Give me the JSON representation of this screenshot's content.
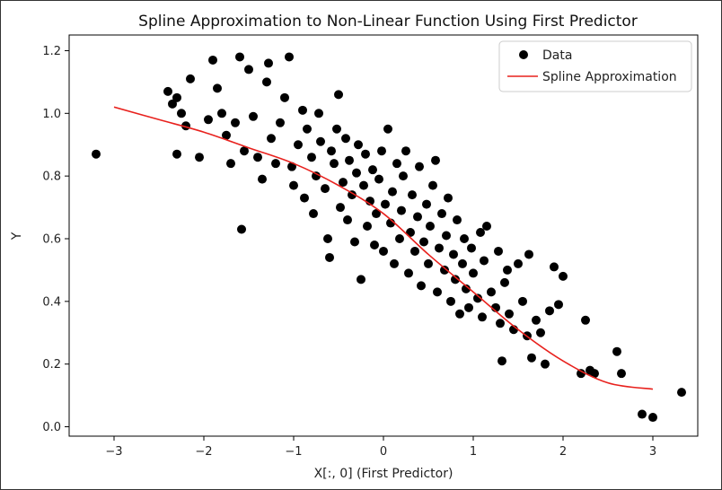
{
  "chart_data": {
    "type": "scatter",
    "title": "Spline Approximation to Non-Linear Function Using First Predictor",
    "xlabel": "X[:, 0] (First Predictor)",
    "ylabel": "Y",
    "xlim": [
      -3.5,
      3.5
    ],
    "ylim": [
      -0.03,
      1.25
    ],
    "xticks": [
      -3,
      -2,
      -1,
      0,
      1,
      2,
      3
    ],
    "xtick_labels": [
      "−3",
      "−2",
      "−1",
      "0",
      "1",
      "2",
      "3"
    ],
    "yticks": [
      0.0,
      0.2,
      0.4,
      0.6,
      0.8,
      1.0,
      1.2
    ],
    "ytick_labels": [
      "0.0",
      "0.2",
      "0.4",
      "0.6",
      "0.8",
      "1.0",
      "1.2"
    ],
    "grid": false,
    "legend_position": "top-right",
    "series": [
      {
        "name": "Data",
        "kind": "scatter",
        "color": "#000000",
        "points": [
          [
            -3.2,
            0.87
          ],
          [
            -2.4,
            1.07
          ],
          [
            -2.35,
            1.03
          ],
          [
            -2.3,
            1.05
          ],
          [
            -2.25,
            1.0
          ],
          [
            -2.2,
            0.96
          ],
          [
            -2.15,
            1.11
          ],
          [
            -2.3,
            0.87
          ],
          [
            -2.05,
            0.86
          ],
          [
            -1.95,
            0.98
          ],
          [
            -1.9,
            1.17
          ],
          [
            -1.85,
            1.08
          ],
          [
            -1.8,
            1.0
          ],
          [
            -1.75,
            0.93
          ],
          [
            -1.7,
            0.84
          ],
          [
            -1.65,
            0.97
          ],
          [
            -1.6,
            1.18
          ],
          [
            -1.58,
            0.63
          ],
          [
            -1.55,
            0.88
          ],
          [
            -1.5,
            1.14
          ],
          [
            -1.45,
            0.99
          ],
          [
            -1.4,
            0.86
          ],
          [
            -1.35,
            0.79
          ],
          [
            -1.3,
            1.1
          ],
          [
            -1.28,
            1.16
          ],
          [
            -1.25,
            0.92
          ],
          [
            -1.2,
            0.84
          ],
          [
            -1.15,
            0.97
          ],
          [
            -1.1,
            1.05
          ],
          [
            -1.05,
            1.18
          ],
          [
            -1.02,
            0.83
          ],
          [
            -1.0,
            0.77
          ],
          [
            -0.95,
            0.9
          ],
          [
            -0.9,
            1.01
          ],
          [
            -0.88,
            0.73
          ],
          [
            -0.85,
            0.95
          ],
          [
            -0.8,
            0.86
          ],
          [
            -0.78,
            0.68
          ],
          [
            -0.75,
            0.8
          ],
          [
            -0.72,
            1.0
          ],
          [
            -0.7,
            0.91
          ],
          [
            -0.65,
            0.76
          ],
          [
            -0.62,
            0.6
          ],
          [
            -0.6,
            0.54
          ],
          [
            -0.58,
            0.88
          ],
          [
            -0.55,
            0.84
          ],
          [
            -0.52,
            0.95
          ],
          [
            -0.5,
            1.06
          ],
          [
            -0.48,
            0.7
          ],
          [
            -0.45,
            0.78
          ],
          [
            -0.42,
            0.92
          ],
          [
            -0.4,
            0.66
          ],
          [
            -0.38,
            0.85
          ],
          [
            -0.35,
            0.74
          ],
          [
            -0.32,
            0.59
          ],
          [
            -0.3,
            0.81
          ],
          [
            -0.28,
            0.9
          ],
          [
            -0.25,
            0.47
          ],
          [
            -0.22,
            0.77
          ],
          [
            -0.2,
            0.87
          ],
          [
            -0.18,
            0.64
          ],
          [
            -0.15,
            0.72
          ],
          [
            -0.12,
            0.82
          ],
          [
            -0.1,
            0.58
          ],
          [
            -0.08,
            0.68
          ],
          [
            -0.05,
            0.79
          ],
          [
            -0.02,
            0.88
          ],
          [
            0.0,
            0.56
          ],
          [
            0.02,
            0.71
          ],
          [
            0.05,
            0.95
          ],
          [
            0.08,
            0.65
          ],
          [
            0.1,
            0.75
          ],
          [
            0.12,
            0.52
          ],
          [
            0.15,
            0.84
          ],
          [
            0.18,
            0.6
          ],
          [
            0.2,
            0.69
          ],
          [
            0.22,
            0.8
          ],
          [
            0.25,
            0.88
          ],
          [
            0.28,
            0.49
          ],
          [
            0.3,
            0.62
          ],
          [
            0.32,
            0.74
          ],
          [
            0.35,
            0.56
          ],
          [
            0.38,
            0.67
          ],
          [
            0.4,
            0.83
          ],
          [
            0.42,
            0.45
          ],
          [
            0.45,
            0.59
          ],
          [
            0.48,
            0.71
          ],
          [
            0.5,
            0.52
          ],
          [
            0.52,
            0.64
          ],
          [
            0.55,
            0.77
          ],
          [
            0.58,
            0.85
          ],
          [
            0.6,
            0.43
          ],
          [
            0.62,
            0.57
          ],
          [
            0.65,
            0.68
          ],
          [
            0.68,
            0.5
          ],
          [
            0.7,
            0.61
          ],
          [
            0.72,
            0.73
          ],
          [
            0.75,
            0.4
          ],
          [
            0.78,
            0.55
          ],
          [
            0.8,
            0.47
          ],
          [
            0.82,
            0.66
          ],
          [
            0.85,
            0.36
          ],
          [
            0.88,
            0.52
          ],
          [
            0.9,
            0.6
          ],
          [
            0.92,
            0.44
          ],
          [
            0.95,
            0.38
          ],
          [
            0.98,
            0.57
          ],
          [
            1.0,
            0.49
          ],
          [
            1.05,
            0.41
          ],
          [
            1.08,
            0.62
          ],
          [
            1.1,
            0.35
          ],
          [
            1.12,
            0.53
          ],
          [
            1.15,
            0.64
          ],
          [
            1.2,
            0.43
          ],
          [
            1.25,
            0.38
          ],
          [
            1.28,
            0.56
          ],
          [
            1.3,
            0.33
          ],
          [
            1.32,
            0.21
          ],
          [
            1.35,
            0.46
          ],
          [
            1.38,
            0.5
          ],
          [
            1.4,
            0.36
          ],
          [
            1.45,
            0.31
          ],
          [
            1.5,
            0.52
          ],
          [
            1.55,
            0.4
          ],
          [
            1.6,
            0.29
          ],
          [
            1.62,
            0.55
          ],
          [
            1.65,
            0.22
          ],
          [
            1.7,
            0.34
          ],
          [
            1.75,
            0.3
          ],
          [
            1.8,
            0.2
          ],
          [
            1.85,
            0.37
          ],
          [
            1.9,
            0.51
          ],
          [
            1.95,
            0.39
          ],
          [
            2.0,
            0.48
          ],
          [
            2.2,
            0.17
          ],
          [
            2.25,
            0.34
          ],
          [
            2.3,
            0.18
          ],
          [
            2.35,
            0.17
          ],
          [
            2.6,
            0.24
          ],
          [
            2.65,
            0.17
          ],
          [
            2.88,
            0.04
          ],
          [
            3.0,
            0.03
          ],
          [
            3.32,
            0.11
          ]
        ]
      },
      {
        "name": "Spline Approximation",
        "kind": "line",
        "color": "#e8211d",
        "points": [
          [
            -3.0,
            1.02
          ],
          [
            -2.5,
            0.98
          ],
          [
            -2.0,
            0.94
          ],
          [
            -1.5,
            0.89
          ],
          [
            -1.0,
            0.84
          ],
          [
            -0.5,
            0.77
          ],
          [
            0.0,
            0.68
          ],
          [
            0.5,
            0.55
          ],
          [
            1.0,
            0.43
          ],
          [
            1.5,
            0.31
          ],
          [
            2.0,
            0.21
          ],
          [
            2.5,
            0.14
          ],
          [
            3.0,
            0.12
          ]
        ]
      }
    ]
  }
}
